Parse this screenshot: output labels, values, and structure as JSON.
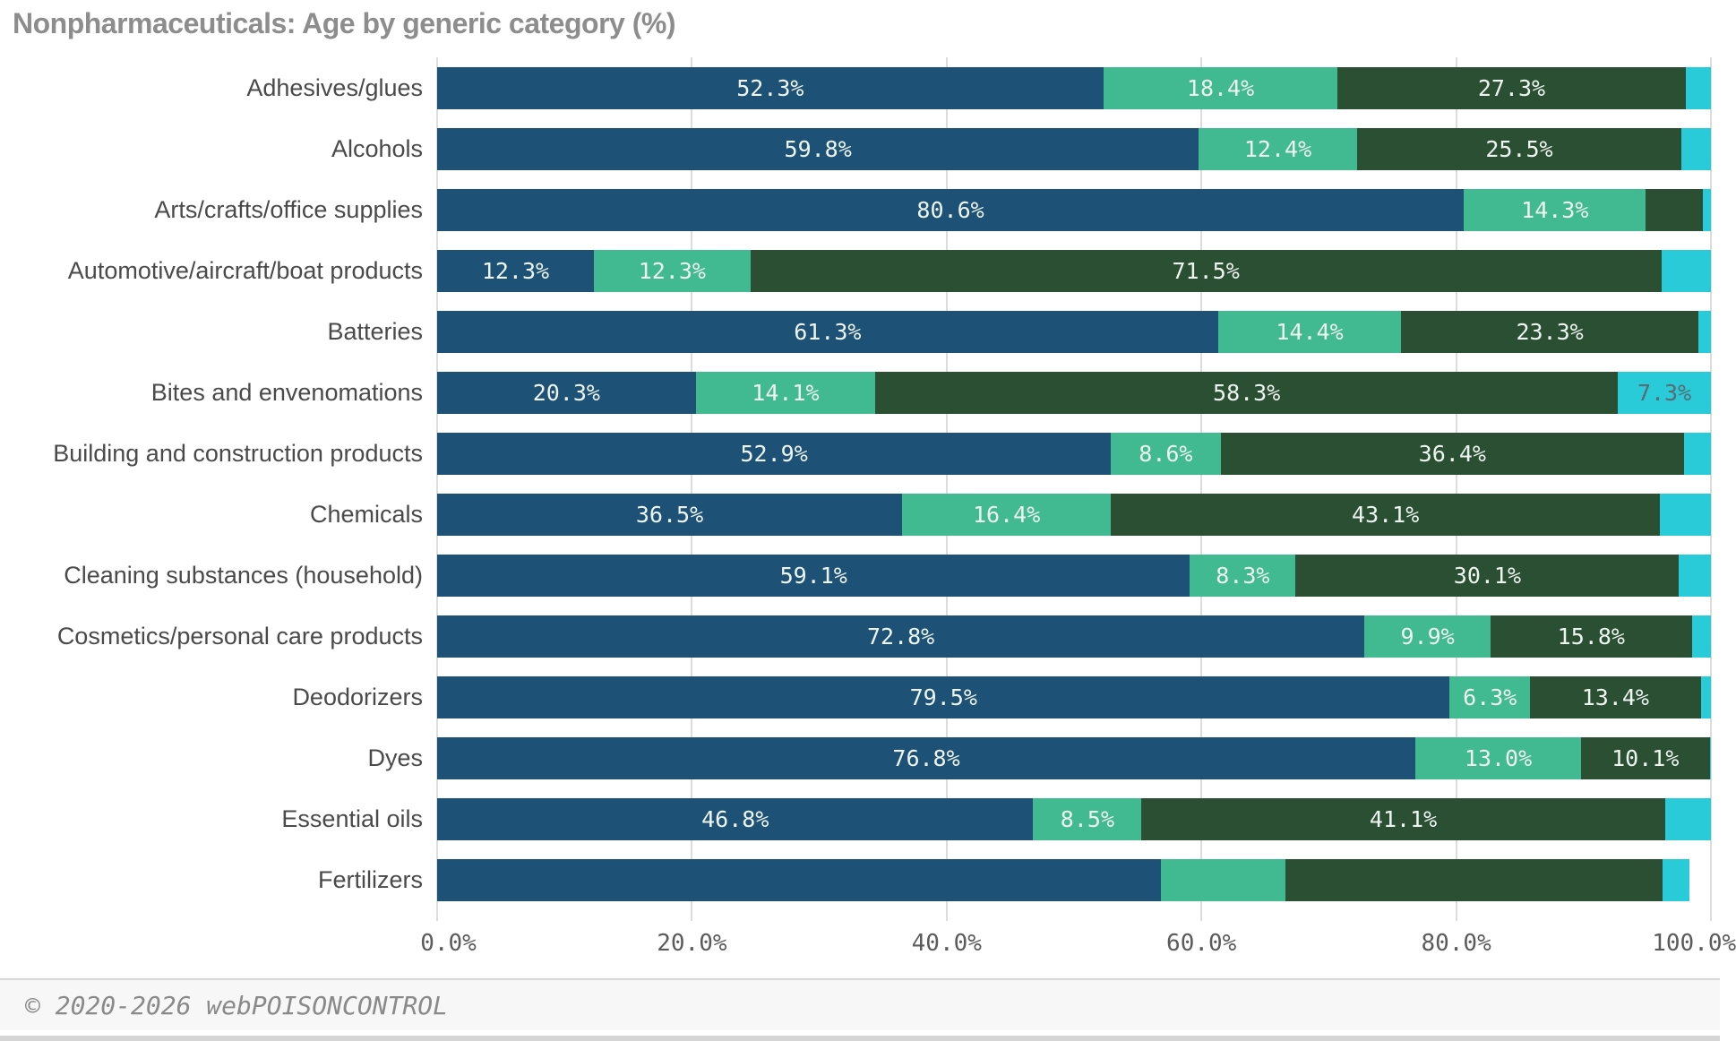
{
  "title": "Nonpharmaceuticals: Age by generic category (%)",
  "footer": {
    "copyright": "© 2020-2026 webPOISONCONTROL"
  },
  "colors": {
    "series_1": "#1d5276",
    "series_2": "#41b991",
    "series_3": "#2a4f33",
    "series_4": "#29cbd9",
    "grid_line": "#dcdcdc",
    "title_text": "#8d8d8d",
    "category_text": "#4a4a4a",
    "bar_label_light": "#eef5f0",
    "bar_label_dark": "#5a6a70",
    "footer_bg": "#f7f7f7",
    "footer_text": "#8a8a8a"
  },
  "chart_data": {
    "type": "bar",
    "orientation": "horizontal",
    "stacked": true,
    "title": "Nonpharmaceuticals: Age by generic category (%)",
    "grid": true,
    "legend": false,
    "xlim": [
      0,
      100
    ],
    "x_ticks": [
      "0.0%",
      "20.0%",
      "40.0%",
      "60.0%",
      "80.0%",
      "100.0%"
    ],
    "x_tick_values": [
      0,
      20,
      40,
      60,
      80,
      100
    ],
    "categories": [
      "Adhesives/glues",
      "Alcohols",
      "Arts/crafts/office supplies",
      "Automotive/aircraft/boat products",
      "Batteries",
      "Bites and envenomations",
      "Building and construction products",
      "Chemicals",
      "Cleaning substances (household)",
      "Cosmetics/personal care products",
      "Deodorizers",
      "Dyes",
      "Essential oils",
      "Fertilizers"
    ],
    "series": [
      {
        "name": "series-1-dark-blue",
        "color": "#1d5276",
        "values": [
          52.3,
          59.8,
          80.6,
          12.3,
          61.3,
          20.3,
          52.9,
          36.5,
          59.1,
          72.8,
          79.5,
          76.8,
          46.8,
          56.8
        ]
      },
      {
        "name": "series-2-light-green",
        "color": "#41b991",
        "values": [
          18.4,
          12.4,
          14.3,
          12.3,
          14.4,
          14.1,
          8.6,
          16.4,
          8.3,
          9.9,
          6.3,
          13.0,
          8.5,
          9.8
        ]
      },
      {
        "name": "series-3-dark-green",
        "color": "#2a4f33",
        "values": [
          27.3,
          25.5,
          4.5,
          71.5,
          23.3,
          58.3,
          36.4,
          43.1,
          30.1,
          15.8,
          13.4,
          10.1,
          41.1,
          29.6
        ]
      },
      {
        "name": "series-4-cyan",
        "color": "#29cbd9",
        "values": [
          2.0,
          2.3,
          0.6,
          3.9,
          1.0,
          7.3,
          2.1,
          4.0,
          2.5,
          1.5,
          0.8,
          0.1,
          3.6,
          2.1
        ]
      }
    ],
    "data_labels": [
      [
        "52.3%",
        "18.4%",
        "27.3%",
        ""
      ],
      [
        "59.8%",
        "12.4%",
        "25.5%",
        ""
      ],
      [
        "80.6%",
        "14.3%",
        "",
        ""
      ],
      [
        "12.3%",
        "12.3%",
        "71.5%",
        ""
      ],
      [
        "61.3%",
        "14.4%",
        "23.3%",
        ""
      ],
      [
        "20.3%",
        "14.1%",
        "58.3%",
        "7.3%"
      ],
      [
        "52.9%",
        "8.6%",
        "36.4%",
        ""
      ],
      [
        "36.5%",
        "16.4%",
        "43.1%",
        ""
      ],
      [
        "59.1%",
        "8.3%",
        "30.1%",
        ""
      ],
      [
        "72.8%",
        "9.9%",
        "15.8%",
        ""
      ],
      [
        "79.5%",
        "6.3%",
        "13.4%",
        ""
      ],
      [
        "76.8%",
        "13.0%",
        "10.1%",
        ""
      ],
      [
        "46.8%",
        "8.5%",
        "41.1%",
        ""
      ],
      [
        "",
        "",
        "",
        ""
      ]
    ]
  }
}
